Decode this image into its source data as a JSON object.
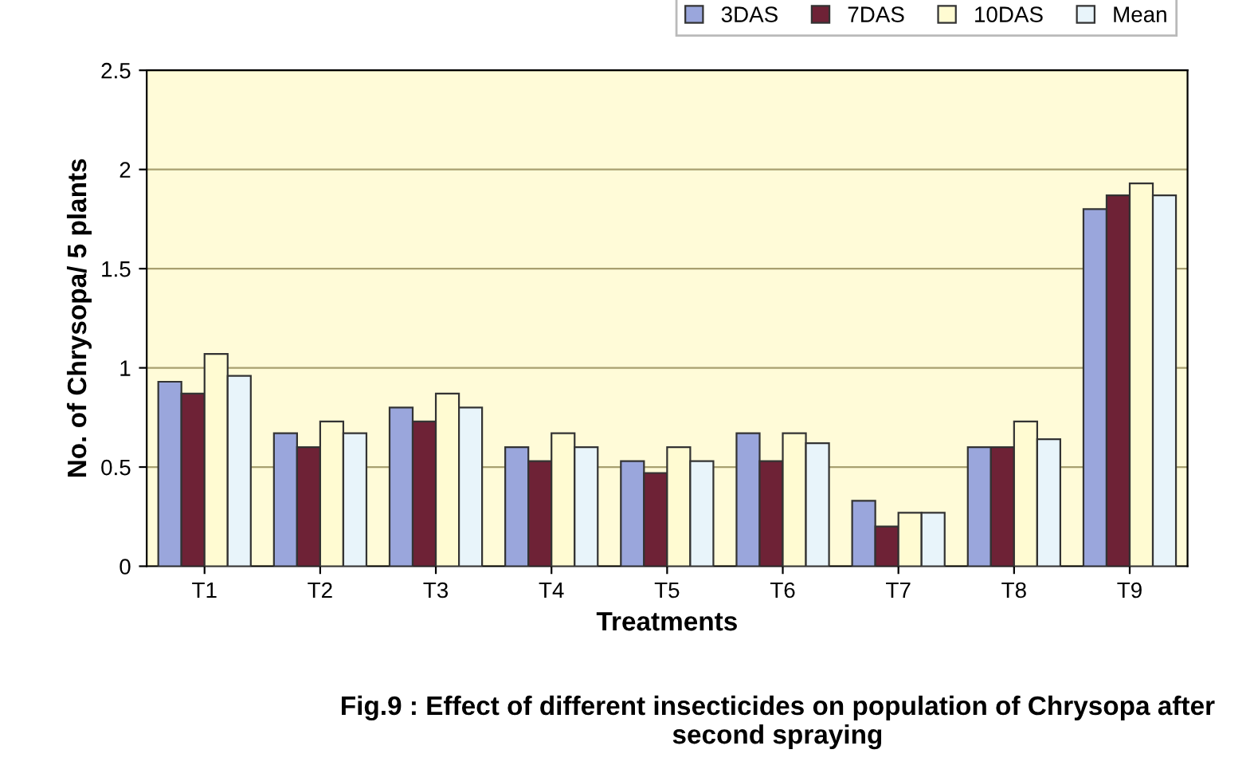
{
  "chart_data": {
    "type": "bar",
    "xlabel": "Treatments",
    "ylabel": "No. of Chrysopa/ 5 plants",
    "categories": [
      "T1",
      "T2",
      "T3",
      "T4",
      "T5",
      "T6",
      "T7",
      "T8",
      "T9"
    ],
    "series": [
      {
        "name": "3DAS",
        "color": "#9aa6dc",
        "values": [
          0.93,
          0.67,
          0.8,
          0.6,
          0.53,
          0.67,
          0.33,
          0.6,
          1.8
        ]
      },
      {
        "name": "7DAS",
        "color": "#6e2236",
        "values": [
          0.87,
          0.6,
          0.73,
          0.53,
          0.47,
          0.53,
          0.2,
          0.6,
          1.87
        ]
      },
      {
        "name": "10DAS",
        "color": "#fffbd2",
        "values": [
          1.07,
          0.73,
          0.87,
          0.67,
          0.6,
          0.67,
          0.27,
          0.73,
          1.93
        ]
      },
      {
        "name": "Mean",
        "color": "#e8f4fa",
        "values": [
          0.96,
          0.67,
          0.8,
          0.6,
          0.53,
          0.62,
          0.27,
          0.64,
          1.87
        ]
      }
    ],
    "ylim": [
      0,
      2.5
    ],
    "yticks": [
      0,
      0.5,
      1,
      1.5,
      2,
      2.5
    ],
    "grid": "y",
    "legend": "top right",
    "annotations": [
      "Fig.9 : Effect of different insecticides on population of Chrysopa after second spraying"
    ]
  }
}
